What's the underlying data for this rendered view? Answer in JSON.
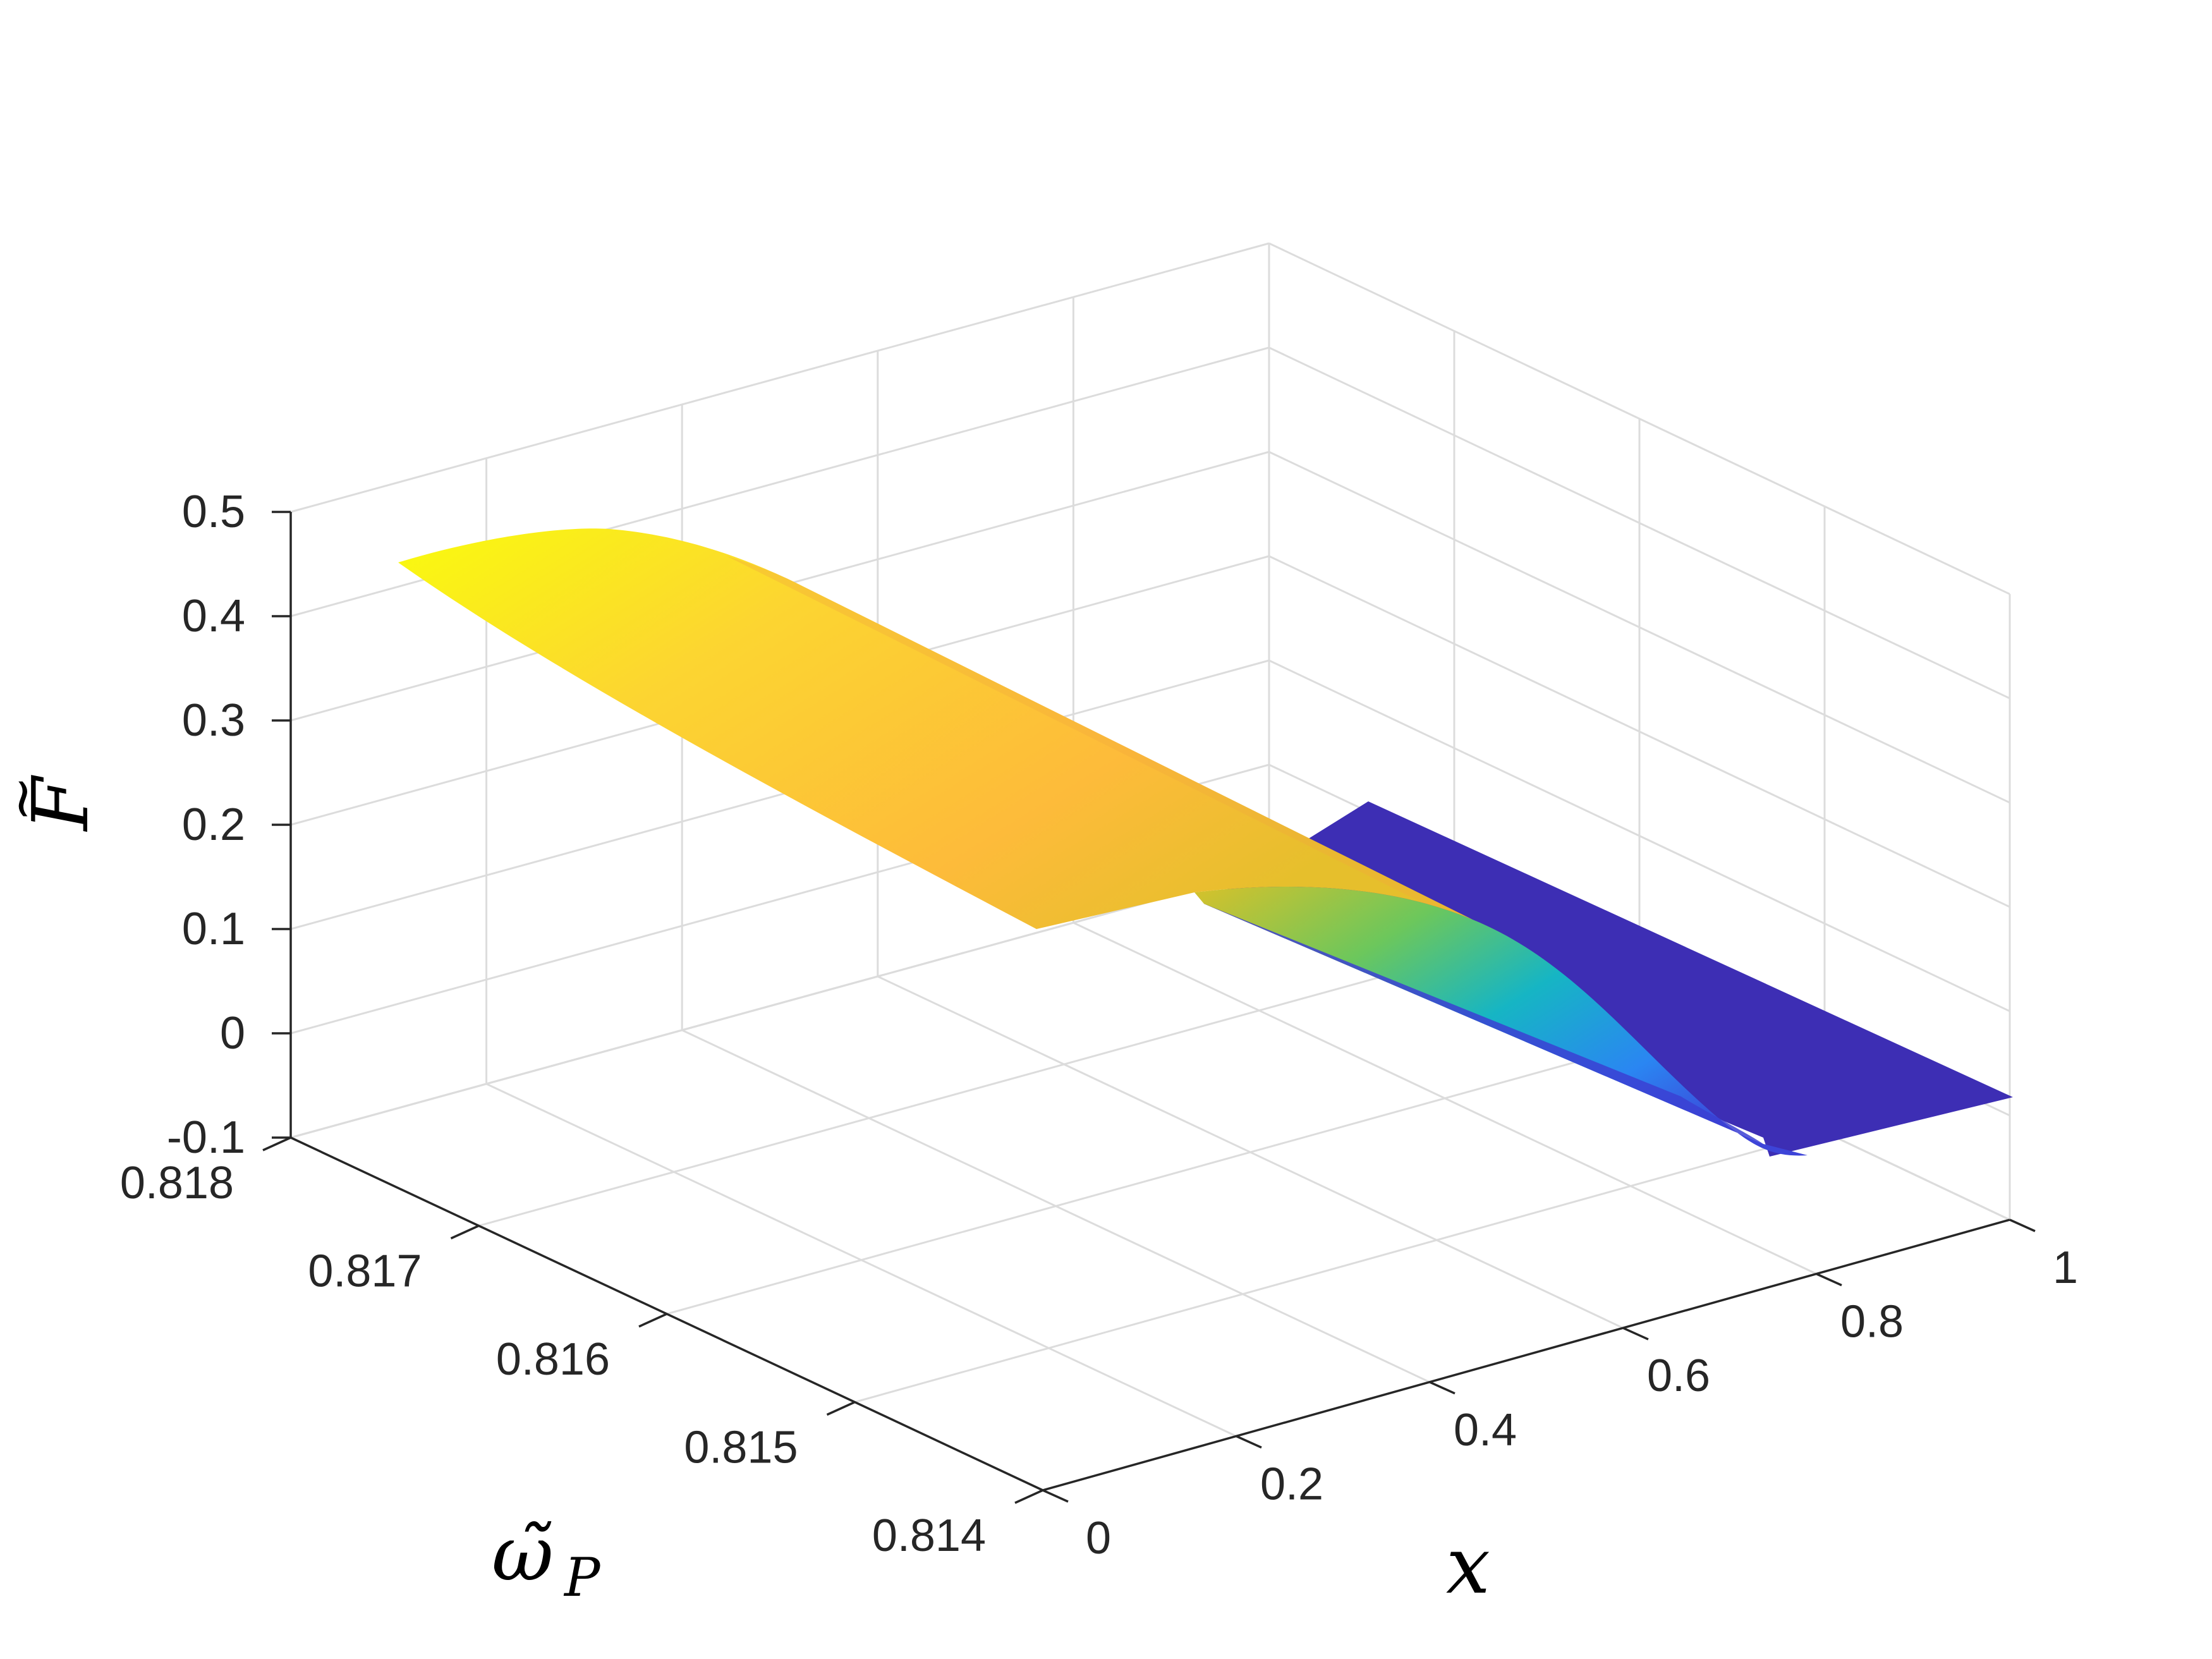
{
  "chart_data": {
    "type": "surface",
    "title": "",
    "xlabel": "x",
    "ylabel": "ω̃",
    "ylabel_sub": "P",
    "zlabel": "F",
    "zlabel_accent": "~",
    "xlim": [
      0,
      1
    ],
    "ylim": [
      0.814,
      0.818
    ],
    "zlim": [
      -0.1,
      0.5
    ],
    "x_ticks": [
      "0",
      "0.2",
      "0.4",
      "0.6",
      "0.8",
      "1"
    ],
    "y_ticks": [
      "0.814",
      "0.815",
      "0.816",
      "0.817",
      "0.818"
    ],
    "z_ticks": [
      "-0.1",
      "0",
      "0.1",
      "0.2",
      "0.3",
      "0.4",
      "0.5"
    ],
    "grid": true,
    "colormap": "parula",
    "surface_segments": [
      {
        "omega_range": [
          0.8162,
          0.818
        ],
        "F_profile": {
          "x": [
            0,
            0.1,
            0.2,
            0.3,
            0.4,
            0.5,
            0.6,
            0.7,
            0.8,
            0.9,
            1.0
          ],
          "F": [
            0.33,
            0.335,
            0.33,
            0.31,
            0.29,
            0.26,
            0.2,
            0.11,
            0.03,
            -0.01,
            0.0
          ]
        }
      },
      {
        "omega_range": [
          0.814,
          0.8162
        ],
        "F_profile": {
          "x": [
            0,
            0.2,
            0.4,
            0.6,
            0.8,
            1.0
          ],
          "F": [
            0,
            0,
            0,
            0,
            0,
            0
          ]
        }
      }
    ],
    "colors": {
      "low": "#3d2eb4",
      "high": "#f9fb0e",
      "mid": "#fcb93c",
      "grid": "#dcdcdc",
      "axis": "#262626"
    }
  }
}
